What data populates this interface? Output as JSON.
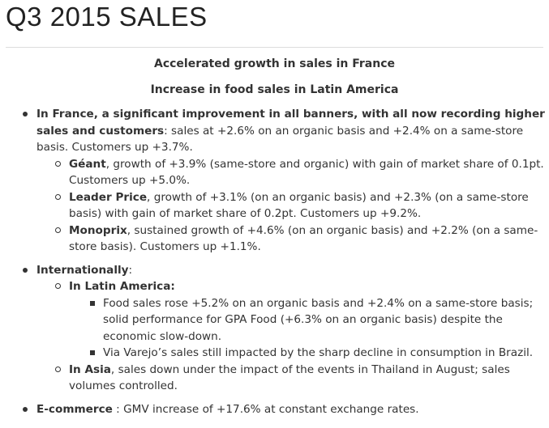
{
  "title": "Q3 2015 SALES",
  "headlines": [
    "Accelerated growth in sales in France",
    "Increase in food sales in Latin America"
  ],
  "bullets": {
    "france": {
      "lead": "In France, a significant improvement in all banners, with all now recording higher sales and customers",
      "text": ": sales at +2.6% on an organic basis and +2.4% on a same-store basis. Customers up +3.7%.",
      "geant": {
        "name": "Géant",
        "text": ", growth of +3.9% (same-store and organic) with gain of market share of 0.1pt. Customers up +5.0%."
      },
      "leader_price": {
        "name": "Leader Price",
        "text": ", growth of +3.1% (on an organic basis) and +2.3% (on a same-store basis) with gain of market share of 0.2pt. Customers up +9.2%."
      },
      "monoprix": {
        "name": "Monoprix",
        "text": ", sustained growth of +4.6% (on an organic basis) and +2.2% (on a same-store basis). Customers up +1.1%."
      }
    },
    "international": {
      "lead": "Internationally",
      "text": ":",
      "latin_america": {
        "name": "In Latin America:",
        "items": [
          "Food sales rose +5.2% on an organic basis and +2.4% on a same-store basis; solid performance for GPA Food (+6.3% on an organic basis) despite the economic slow-down.",
          "Via Varejo’s sales still impacted by the sharp decline in consumption in Brazil."
        ]
      },
      "asia": {
        "name": "In Asia",
        "text": ", sales down under the impact of the events in Thailand in August; sales volumes controlled."
      }
    },
    "ecommerce": {
      "lead": "E-commerce",
      "text": " : GMV increase of +17.6% at constant exchange rates."
    }
  }
}
